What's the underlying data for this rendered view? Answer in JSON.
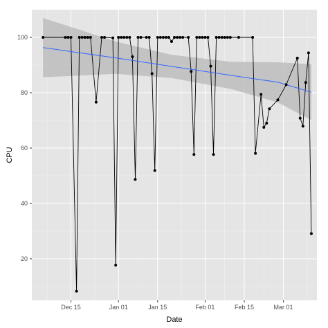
{
  "chart_data": {
    "type": "line",
    "xlabel": "Date",
    "ylabel": "CPU",
    "x_ticks": [
      "Dec 15",
      "Jan 01",
      "Jan 15",
      "Feb 01",
      "Feb 15",
      "Mar 01"
    ],
    "x_tick_dates": [
      "2013-12-15",
      "2014-01-01",
      "2014-01-15",
      "2014-02-01",
      "2014-02-15",
      "2014-03-01"
    ],
    "y_ticks": [
      20,
      40,
      60,
      80,
      100
    ],
    "xlim": [
      "2013-12-01",
      "2014-03-13"
    ],
    "ylim": [
      5,
      110
    ],
    "grid": true,
    "background": "#e5e5e5",
    "grid_color": "#ffffff",
    "line_color": "#000000",
    "point_color": "#000000",
    "trend_color": "#3366ff",
    "band_color": "#bdbdbd",
    "series": [
      {
        "values": [
          [
            "2013-12-05",
            100
          ],
          [
            "2013-12-13",
            100
          ],
          [
            "2013-12-14",
            100
          ],
          [
            "2013-12-15",
            100
          ],
          [
            "2013-12-17",
            8.3
          ],
          [
            "2013-12-18",
            100
          ],
          [
            "2013-12-19",
            100
          ],
          [
            "2013-12-20",
            100
          ],
          [
            "2013-12-21",
            100
          ],
          [
            "2013-12-22",
            100
          ],
          [
            "2013-12-24",
            76.6
          ],
          [
            "2013-12-26",
            100
          ],
          [
            "2013-12-27",
            100
          ],
          [
            "2013-12-30",
            99.8
          ],
          [
            "2013-12-31",
            17.7
          ],
          [
            "2014-01-01",
            100
          ],
          [
            "2014-01-02",
            100
          ],
          [
            "2014-01-03",
            100
          ],
          [
            "2014-01-04",
            100
          ],
          [
            "2014-01-05",
            100
          ],
          [
            "2014-01-06",
            93
          ],
          [
            "2014-01-07",
            48.7
          ],
          [
            "2014-01-08",
            100
          ],
          [
            "2014-01-09",
            100
          ],
          [
            "2014-01-11",
            100
          ],
          [
            "2014-01-12",
            100
          ],
          [
            "2014-01-13",
            86.9
          ],
          [
            "2014-01-14",
            51.9
          ],
          [
            "2014-01-15",
            100
          ],
          [
            "2014-01-16",
            100
          ],
          [
            "2014-01-17",
            100
          ],
          [
            "2014-01-18",
            100
          ],
          [
            "2014-01-19",
            100
          ],
          [
            "2014-01-20",
            98.5
          ],
          [
            "2014-01-21",
            100
          ],
          [
            "2014-01-22",
            100
          ],
          [
            "2014-01-23",
            100
          ],
          [
            "2014-01-24",
            100
          ],
          [
            "2014-01-26",
            100
          ],
          [
            "2014-01-27",
            87.7
          ],
          [
            "2014-01-28",
            57.7
          ],
          [
            "2014-01-29",
            100
          ],
          [
            "2014-01-30",
            100
          ],
          [
            "2014-01-31",
            100
          ],
          [
            "2014-02-01",
            100
          ],
          [
            "2014-02-02",
            100
          ],
          [
            "2014-02-03",
            89.6
          ],
          [
            "2014-02-04",
            57.7
          ],
          [
            "2014-02-05",
            100
          ],
          [
            "2014-02-06",
            100
          ],
          [
            "2014-02-07",
            100
          ],
          [
            "2014-02-08",
            100
          ],
          [
            "2014-02-09",
            100
          ],
          [
            "2014-02-10",
            100
          ],
          [
            "2014-02-13",
            100
          ],
          [
            "2014-02-18",
            100
          ],
          [
            "2014-02-19",
            58.1
          ],
          [
            "2014-02-21",
            79.4
          ],
          [
            "2014-02-22",
            67.5
          ],
          [
            "2014-02-23",
            69
          ],
          [
            "2014-02-24",
            74.2
          ],
          [
            "2014-02-27",
            77.4
          ],
          [
            "2014-03-02",
            82.9
          ],
          [
            "2014-03-06",
            92.5
          ],
          [
            "2014-03-07",
            70.8
          ],
          [
            "2014-03-08",
            67.9
          ],
          [
            "2014-03-09",
            83.7
          ],
          [
            "2014-03-10",
            94.4
          ],
          [
            "2014-03-11",
            29.1
          ]
        ]
      }
    ],
    "trend": {
      "method": "linear fit with confidence band",
      "x": [
        "2013-12-05",
        "2013-12-31",
        "2014-01-20",
        "2014-02-10",
        "2014-02-27",
        "2014-03-11"
      ],
      "y": [
        96.3,
        92.6,
        89.5,
        86.3,
        83.8,
        80.2
      ],
      "lower": [
        85.6,
        86.8,
        85.3,
        81.4,
        76.5,
        70.1
      ],
      "upper": [
        107,
        98.5,
        93.7,
        91.2,
        91.0,
        90.3
      ]
    }
  }
}
